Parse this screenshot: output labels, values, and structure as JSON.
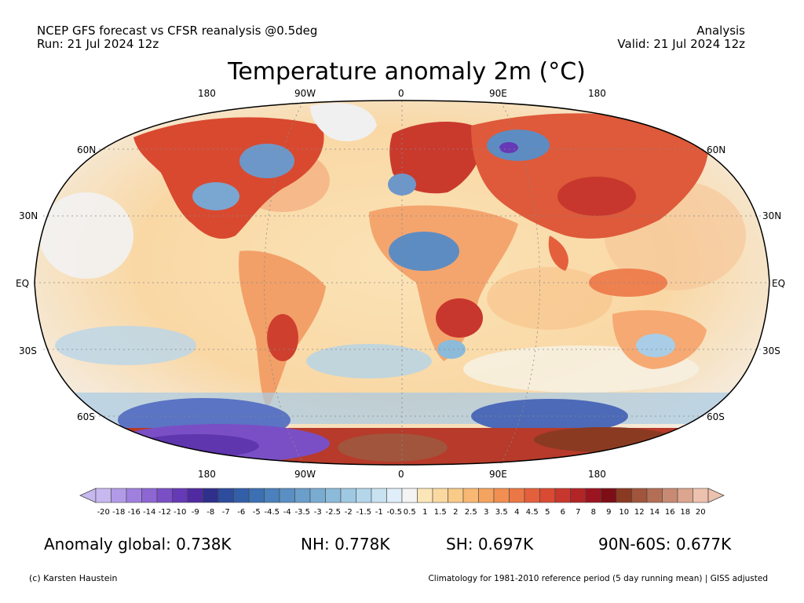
{
  "header": {
    "left_line1": "NCEP GFS forecast vs CFSR reanalysis @0.5deg",
    "left_line2": "Run: 21 Jul 2024 12z",
    "right_line1": "Analysis",
    "right_line2": "Valid: 21 Jul 2024 12z"
  },
  "title": "Temperature anomaly 2m (°C)",
  "map": {
    "projection": "Robinson",
    "lon_labels_top": [
      "180",
      "90W",
      "0",
      "90E",
      "180"
    ],
    "lon_labels_bottom": [
      "180",
      "90W",
      "0",
      "90E",
      "180"
    ],
    "lat_labels_left": [
      "60N",
      "30N",
      "EQ",
      "30S",
      "60S"
    ],
    "lat_labels_right": [
      "60N",
      "30N",
      "EQ",
      "30S",
      "60S"
    ]
  },
  "colorbar": {
    "levels": [
      "-20",
      "-18",
      "-16",
      "-14",
      "-12",
      "-10",
      "-9",
      "-8",
      "-7",
      "-6",
      "-5",
      "-4.5",
      "-4",
      "-3.5",
      "-3",
      "-2.5",
      "-2",
      "-1.5",
      "-1",
      "-0.5",
      "0.5",
      "1",
      "1.5",
      "2",
      "2.5",
      "3",
      "3.5",
      "4",
      "4.5",
      "5",
      "6",
      "7",
      "8",
      "9",
      "10",
      "12",
      "14",
      "16",
      "18",
      "20"
    ],
    "colors": [
      "#c7b8f0",
      "#b39ae8",
      "#a080de",
      "#8d66d3",
      "#7a4fc6",
      "#6639b6",
      "#4f2aa0",
      "#2f2f8c",
      "#2d4c9d",
      "#335fa8",
      "#3c70b2",
      "#4a80bb",
      "#5a8fc3",
      "#6a9ecb",
      "#7aacd2",
      "#8cbbda",
      "#9fc9e2",
      "#b3d6ea",
      "#c8e2f1",
      "#dfeef8",
      "#f4f4f4",
      "#fbe6b8",
      "#fad9a0",
      "#f9ca88",
      "#f8b873",
      "#f5a460",
      "#f18e52",
      "#ec7746",
      "#e4603c",
      "#da4a33",
      "#c8372d",
      "#b32426",
      "#9c1420",
      "#7d0e16",
      "#8b3a22",
      "#a0553c",
      "#b36f56",
      "#c88a72",
      "#dba58f",
      "#ecc1ad"
    ]
  },
  "stats": {
    "global": "Anomaly global: 0.738K",
    "nh": "NH: 0.778K",
    "sh": "SH: 0.697K",
    "polar": "90N-60S: 0.677K"
  },
  "footer": {
    "credit": "(c) Karsten Haustein",
    "note": "Climatology for 1981-2010 reference period (5 day running mean) | GISS adjusted"
  }
}
